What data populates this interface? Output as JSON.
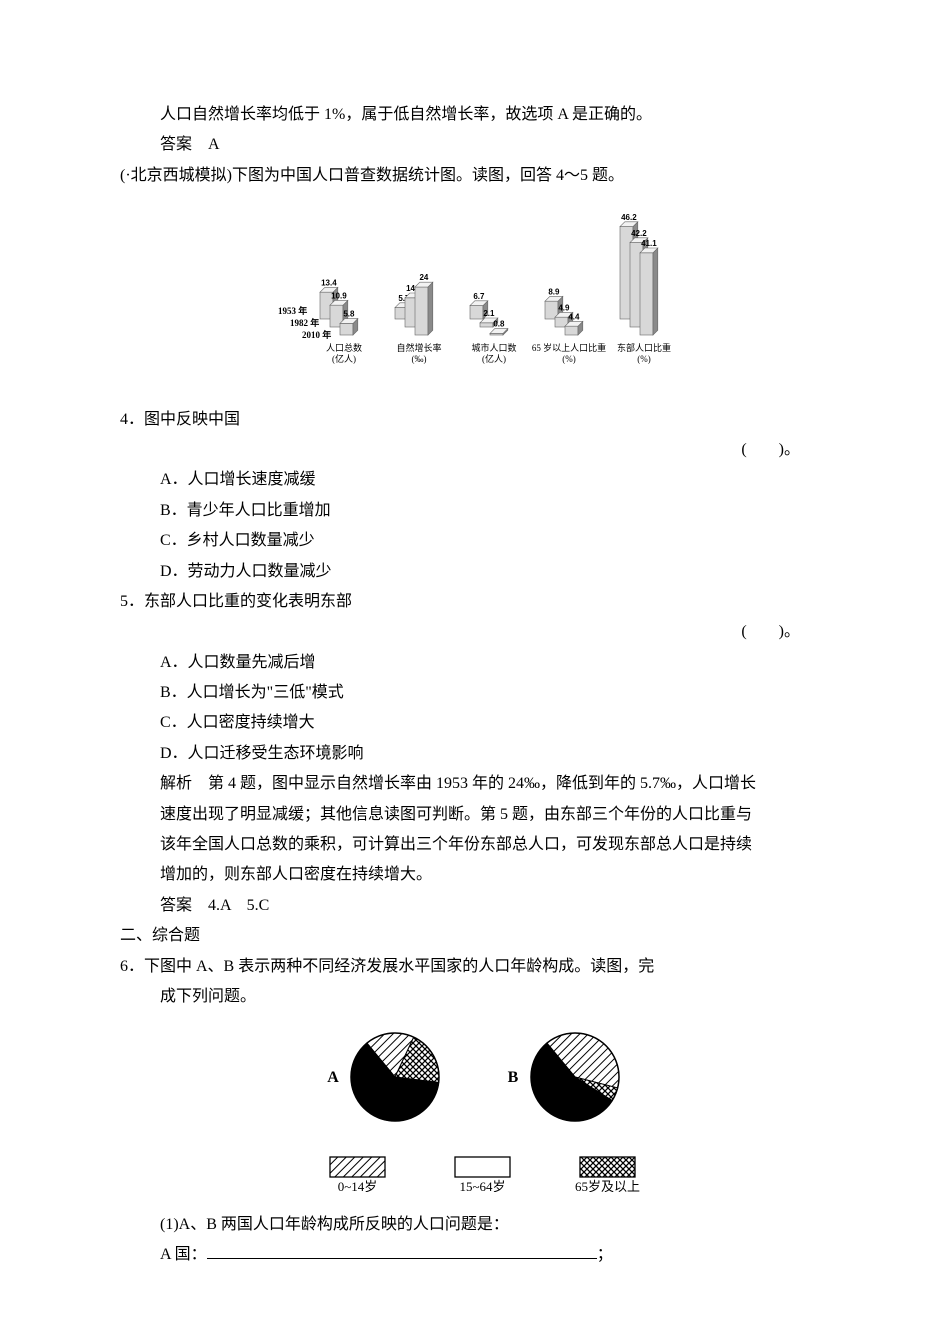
{
  "intro": {
    "line1": "人口自然增长率均低于 1%，属于低自然增长率，故选项 A 是正确的。",
    "answer_line": "答案　A"
  },
  "source_line": "(·北京西城模拟)下图为中国人口普查数据统计图。读图，回答 4～5 题。",
  "bar_chart": {
    "years": [
      "2010 年",
      "1982 年",
      "1953 年"
    ],
    "axis_labels": [
      "人口总数\n(亿人)",
      "自然增长率\n(‰)",
      "城市人口数\n(亿人)",
      "65 岁以上人口比重\n(%)",
      "东部人口比重\n(%)"
    ],
    "groups": [
      {
        "values": [
          5.8,
          10.9,
          13.4
        ]
      },
      {
        "values": [
          24,
          14.6,
          5.7
        ]
      },
      {
        "values": [
          0.8,
          2.1,
          6.7
        ]
      },
      {
        "values": [
          4.4,
          4.9,
          8.9
        ]
      },
      {
        "values": [
          41.1,
          42.2,
          46.2
        ]
      }
    ],
    "colors": {
      "bar_light": "#d8d8d8",
      "bar_dark": "#8a8a8a",
      "bar_top": "#f2f2f2",
      "line": "#666666",
      "text": "#000000"
    },
    "font_size_labels": 9
  },
  "q4": {
    "stem": "4．图中反映中国",
    "blank": "(　　)。",
    "opts": {
      "a": "A．人口增长速度减缓",
      "b": "B．青少年人口比重增加",
      "c": "C．乡村人口数量减少",
      "d": "D．劳动力人口数量减少"
    }
  },
  "q5": {
    "stem": "5．东部人口比重的变化表明东部",
    "blank": "(　　)。",
    "opts": {
      "a": "A．人口数量先减后增",
      "b": "B．人口增长为\"三低\"模式",
      "c": "C．人口密度持续增大",
      "d": "D．人口迁移受生态环境影响"
    }
  },
  "explain": {
    "l1": "解析　第 4 题，图中显示自然增长率由 1953 年的 24‰，降低到年的 5.7‰，人口增长",
    "l2": "速度出现了明显减缓；其他信息读图可判断。第 5 题，由东部三个年份的人口比重与",
    "l3": "该年全国人口总数的乘积，可计算出三个年份东部总人口，可发现东部总人口是持续",
    "l4": "增加的，则东部人口密度在持续增大。"
  },
  "answer45": "答案　4.A　5.C",
  "section2": "二、综合题",
  "q6": {
    "stem1": "6．下图中 A、B 表示两种不同经济发展水平国家的人口年龄构成。读图，完",
    "stem2": "成下列问题。"
  },
  "pie": {
    "labels": {
      "a": "A",
      "b": "B"
    },
    "legend": [
      "0~14岁",
      "15~64岁",
      "65岁及以上"
    ],
    "A": {
      "age0_14": 0.18,
      "age15_64": 0.62,
      "age65": 0.2
    },
    "B": {
      "age0_14": 0.4,
      "age15_64": 0.55,
      "age65": 0.05
    },
    "colors": {
      "stroke": "#000000",
      "hatch": "#000000",
      "bg": "#ffffff"
    }
  },
  "sub1": {
    "prompt": "(1)A、B 两国人口年龄构成所反映的人口问题是：",
    "aline_prefix": "A 国：",
    "aline_suffix": "；"
  }
}
